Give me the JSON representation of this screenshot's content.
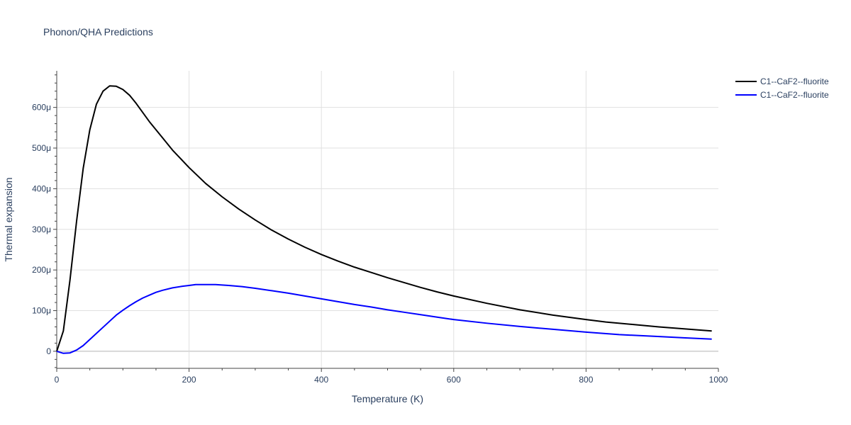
{
  "chart_data": {
    "type": "line",
    "title": "Phonon/QHA Predictions",
    "xlabel": "Temperature (K)",
    "ylabel": "Thermal expansion",
    "xlim": [
      0,
      1000
    ],
    "ylim": [
      -42,
      690
    ],
    "x_ticks": [
      0,
      200,
      400,
      600,
      800,
      1000
    ],
    "x_tick_labels": [
      "0",
      "200",
      "400",
      "600",
      "800",
      "1000"
    ],
    "y_ticks": [
      0,
      100,
      200,
      300,
      400,
      500,
      600
    ],
    "y_tick_labels": [
      "0",
      "100μ",
      "200μ",
      "300μ",
      "400μ",
      "500μ",
      "600μ"
    ],
    "grid": true,
    "legend_position": "top-right",
    "series": [
      {
        "name": "C1--CaF2--fluorite",
        "color": "#000000",
        "x": [
          0,
          10,
          20,
          30,
          40,
          50,
          60,
          70,
          80,
          90,
          100,
          110,
          120,
          140,
          160,
          175,
          200,
          225,
          250,
          275,
          300,
          325,
          350,
          375,
          400,
          425,
          450,
          475,
          500,
          525,
          550,
          575,
          600,
          650,
          700,
          750,
          800,
          830,
          870,
          910,
          950,
          990
        ],
        "y": [
          0,
          50,
          175,
          320,
          450,
          545,
          608,
          640,
          653,
          652,
          644,
          630,
          610,
          565,
          525,
          495,
          452,
          413,
          380,
          350,
          323,
          298,
          276,
          256,
          238,
          222,
          207,
          194,
          181,
          169,
          157,
          146,
          136,
          118,
          102,
          89,
          78,
          72,
          66,
          60,
          55,
          50
        ]
      },
      {
        "name": "C1--CaF2--fluorite",
        "color": "#0000ff",
        "x": [
          0,
          10,
          20,
          30,
          40,
          50,
          60,
          70,
          80,
          90,
          100,
          110,
          120,
          130,
          140,
          150,
          160,
          175,
          190,
          200,
          210,
          220,
          240,
          260,
          280,
          300,
          325,
          350,
          375,
          400,
          425,
          450,
          475,
          500,
          525,
          550,
          575,
          600,
          650,
          700,
          750,
          800,
          850,
          900,
          950,
          990
        ],
        "y": [
          0,
          -5,
          -4,
          3,
          14,
          29,
          44,
          59,
          74,
          89,
          101,
          112,
          122,
          131,
          138,
          145,
          150,
          156,
          160,
          162,
          164,
          164,
          164,
          162,
          159,
          155,
          149,
          143,
          136,
          129,
          122,
          115,
          109,
          102,
          96,
          90,
          84,
          78,
          69,
          61,
          54,
          47,
          41,
          37,
          33,
          30
        ]
      }
    ]
  }
}
